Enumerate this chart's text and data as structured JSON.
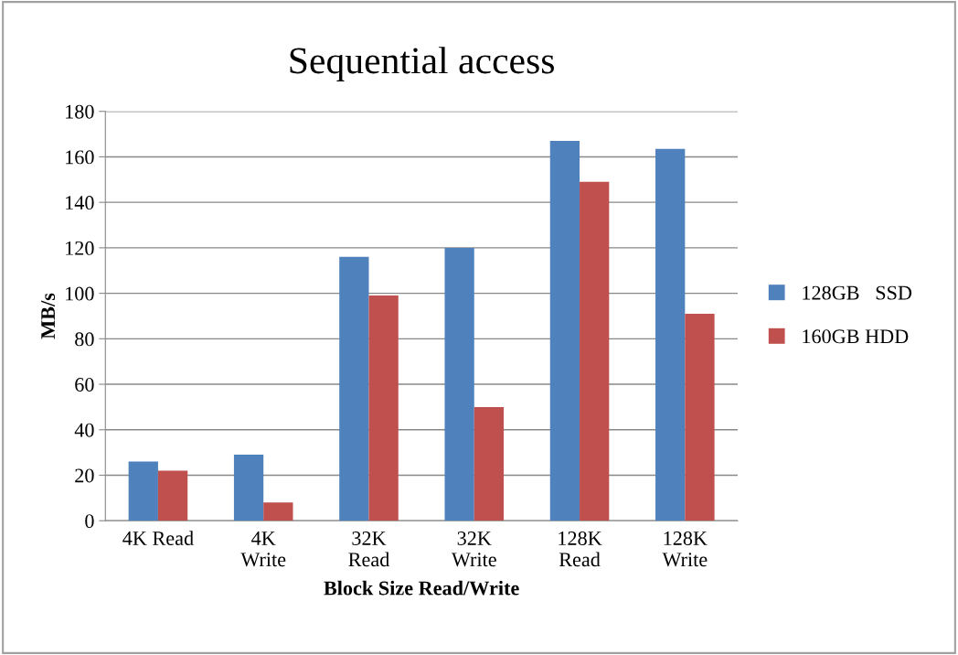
{
  "chart_data": {
    "type": "bar",
    "title": "Sequential access",
    "xlabel": "Block Size Read/Write",
    "ylabel": "MB/s",
    "categories": [
      "4K Read",
      "4K\nWrite",
      "32K\nRead",
      "32K\nWrite",
      "128K\nRead",
      "128K\nWrite"
    ],
    "series": [
      {
        "name": "128GB   SSD",
        "color": "#4f81bd",
        "values": [
          26,
          29,
          116,
          120,
          167,
          163.5
        ]
      },
      {
        "name": "160GB HDD",
        "color": "#c0504d",
        "values": [
          22,
          8,
          99,
          50,
          149,
          91
        ]
      }
    ],
    "ylim": [
      0,
      180
    ],
    "yticks": [
      0,
      20,
      40,
      60,
      80,
      100,
      120,
      140,
      160,
      180
    ],
    "grid": "y",
    "legend": "right"
  }
}
